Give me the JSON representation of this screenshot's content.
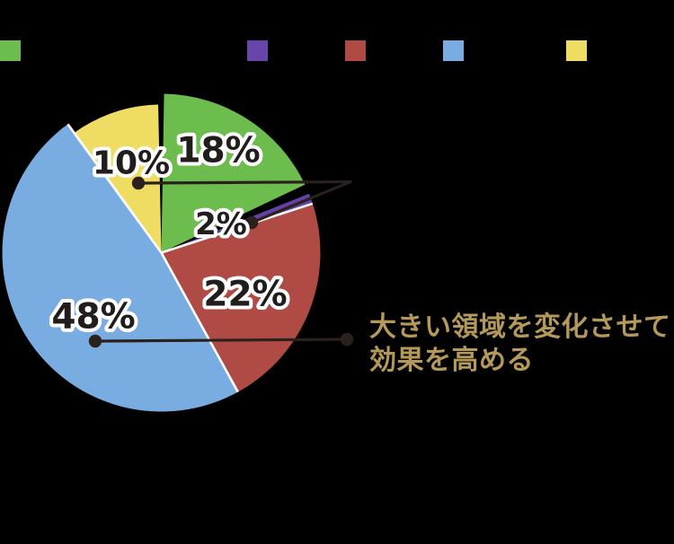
{
  "page": {
    "background": "#000000"
  },
  "legend": {
    "swatches": [
      {
        "name": "green",
        "color": "#6cbc4e"
      },
      {
        "name": "purple",
        "color": "#6845a8"
      },
      {
        "name": "red",
        "color": "#b04a44"
      },
      {
        "name": "blue",
        "color": "#79ade2"
      },
      {
        "name": "yellow",
        "color": "#eedd62"
      }
    ]
  },
  "chart_data": {
    "type": "pie",
    "start_angle_deg": 0,
    "direction": "clockwise",
    "slices": [
      {
        "name": "green",
        "label": "18%",
        "value": 18,
        "color": "#6cbc4e"
      },
      {
        "name": "purple",
        "label": "2%",
        "value": 2,
        "color": "#6540a5"
      },
      {
        "name": "red",
        "label": "22%",
        "value": 22,
        "color": "#b04a44"
      },
      {
        "name": "blue",
        "label": "48%",
        "value": 48,
        "color": "#79ade2"
      },
      {
        "name": "yellow",
        "label": "10%",
        "value": 10,
        "color": "#eedd62"
      }
    ],
    "separator_color": "#ffffff",
    "label_fill": "#211d1c",
    "label_outline": "#ffffff",
    "leader_color": "#2a211d",
    "annotation": {
      "lines": [
        "大きい領域を変化させて",
        "効果を高める"
      ],
      "color": "#b5995a"
    }
  }
}
